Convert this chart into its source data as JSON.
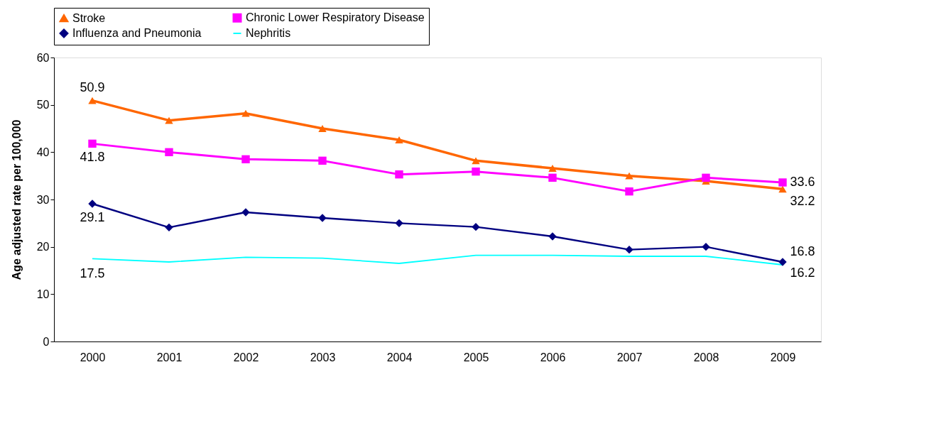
{
  "chart_data": {
    "type": "line",
    "ylabel": "Age adjusted rate per 100,000",
    "categories": [
      "2000",
      "2001",
      "2002",
      "2003",
      "2004",
      "2005",
      "2006",
      "2007",
      "2008",
      "2009"
    ],
    "ylim": [
      0,
      60
    ],
    "yticks": [
      0,
      10,
      20,
      30,
      40,
      50,
      60
    ],
    "grid": false,
    "legend": "top",
    "line_style": "solid",
    "series": [
      {
        "name": "Stroke",
        "color": "#ff6600",
        "marker": "triangle",
        "values": [
          50.9,
          46.7,
          48.2,
          45.0,
          42.6,
          38.2,
          36.6,
          35.0,
          33.9,
          32.2
        ],
        "value_labels": [
          "50.9",
          null,
          null,
          null,
          null,
          null,
          null,
          null,
          null,
          "32.2"
        ]
      },
      {
        "name": "Chronic Lower Respiratory Disease",
        "color": "#ff00ff",
        "marker": "square",
        "values": [
          41.8,
          40.0,
          38.5,
          38.2,
          35.3,
          35.9,
          34.6,
          31.7,
          34.6,
          33.6
        ],
        "value_labels": [
          "41.8",
          null,
          null,
          null,
          null,
          null,
          null,
          null,
          null,
          "33.6"
        ]
      },
      {
        "name": "Influenza and Pneumonia",
        "color": "#000080",
        "marker": "diamond",
        "values": [
          29.1,
          24.1,
          27.3,
          26.1,
          25.0,
          24.2,
          22.2,
          19.4,
          20.0,
          16.8
        ],
        "value_labels": [
          "29.1",
          null,
          null,
          null,
          null,
          null,
          null,
          null,
          null,
          "16.8"
        ]
      },
      {
        "name": "Nephritis",
        "color": "#00ffff",
        "marker": "none",
        "values": [
          17.5,
          16.8,
          17.8,
          17.6,
          16.5,
          18.2,
          18.2,
          18.0,
          18.0,
          16.2
        ],
        "value_labels": [
          "17.5",
          null,
          null,
          null,
          null,
          null,
          null,
          null,
          null,
          "16.2"
        ]
      }
    ]
  }
}
